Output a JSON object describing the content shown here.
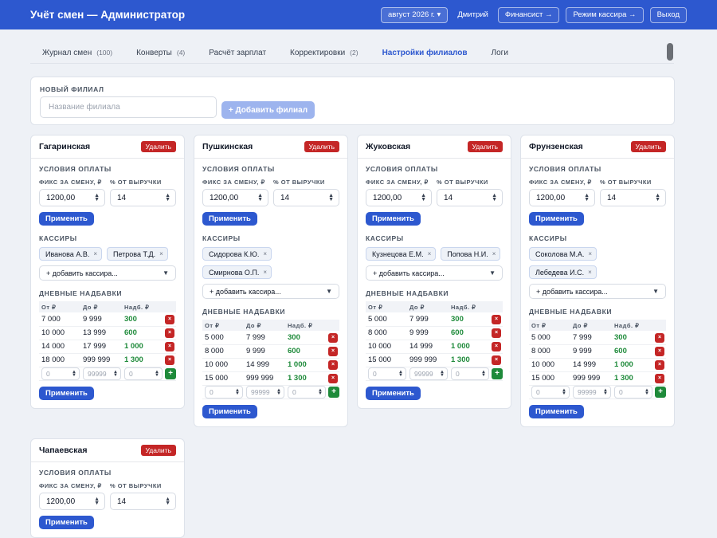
{
  "app": {
    "title": "Учёт смен — Администратор",
    "month": "август 2026 г. ▾",
    "user": "Дмитрий",
    "finance_btn": "Финансист →",
    "cashier_mode_btn": "Режим кассира →",
    "logout_btn": "Выход"
  },
  "tabs": [
    {
      "label": "Журнал смен",
      "count": "(100)"
    },
    {
      "label": "Конверты",
      "count": "(4)"
    },
    {
      "label": "Расчёт зарплат",
      "count": ""
    },
    {
      "label": "Корректировки",
      "count": "(2)"
    },
    {
      "label": "Настройки филиалов",
      "count": ""
    },
    {
      "label": "Логи",
      "count": ""
    }
  ],
  "new_branch": {
    "label": "Новый филиал",
    "placeholder": "Название филиала",
    "add_btn": "+ Добавить филиал"
  },
  "common": {
    "delete": "Удалить",
    "payment_conditions": "Условия оплаты",
    "fix_label": "Фикс за смену, ₽",
    "pct_label": "% от выручки",
    "apply": "Применить",
    "cashiers": "Кассиры",
    "add_cashier": "+ добавить кассира...",
    "daily_bonuses": "Дневные надбавки",
    "col_from": "От ₽",
    "col_to": "До ₽",
    "col_bonus": "Надб. ₽",
    "new_from_ph": "0",
    "new_to_ph": "99999",
    "new_bonus_ph": "0"
  },
  "branches": [
    {
      "name": "Гагаринская",
      "fix": "1200,00",
      "pct": "14",
      "cashiers": [
        "Иванова А.В.",
        "Петрова Т.Д."
      ],
      "bonuses": [
        [
          "7 000",
          "9 999",
          "300"
        ],
        [
          "10 000",
          "13 999",
          "600"
        ],
        [
          "14 000",
          "17 999",
          "1 000"
        ],
        [
          "18 000",
          "999 999",
          "1 300"
        ]
      ]
    },
    {
      "name": "Пушкинская",
      "fix": "1200,00",
      "pct": "14",
      "cashiers": [
        "Сидорова К.Ю.",
        "Смирнова О.П."
      ],
      "bonuses": [
        [
          "5 000",
          "7 999",
          "300"
        ],
        [
          "8 000",
          "9 999",
          "600"
        ],
        [
          "10 000",
          "14 999",
          "1 000"
        ],
        [
          "15 000",
          "999 999",
          "1 300"
        ]
      ]
    },
    {
      "name": "Жуковская",
      "fix": "1200,00",
      "pct": "14",
      "cashiers": [
        "Кузнецова Е.М.",
        "Попова Н.И."
      ],
      "bonuses": [
        [
          "5 000",
          "7 999",
          "300"
        ],
        [
          "8 000",
          "9 999",
          "600"
        ],
        [
          "10 000",
          "14 999",
          "1 000"
        ],
        [
          "15 000",
          "999 999",
          "1 300"
        ]
      ]
    },
    {
      "name": "Фрунзенская",
      "fix": "1200,00",
      "pct": "14",
      "cashiers": [
        "Соколова М.А.",
        "Лебедева И.С."
      ],
      "bonuses": [
        [
          "5 000",
          "7 999",
          "300"
        ],
        [
          "8 000",
          "9 999",
          "600"
        ],
        [
          "10 000",
          "14 999",
          "1 000"
        ],
        [
          "15 000",
          "999 999",
          "1 300"
        ]
      ]
    },
    {
      "name": "Чапаевская",
      "fix": "1200,00",
      "pct": "14",
      "cashiers": [],
      "bonuses": []
    }
  ]
}
